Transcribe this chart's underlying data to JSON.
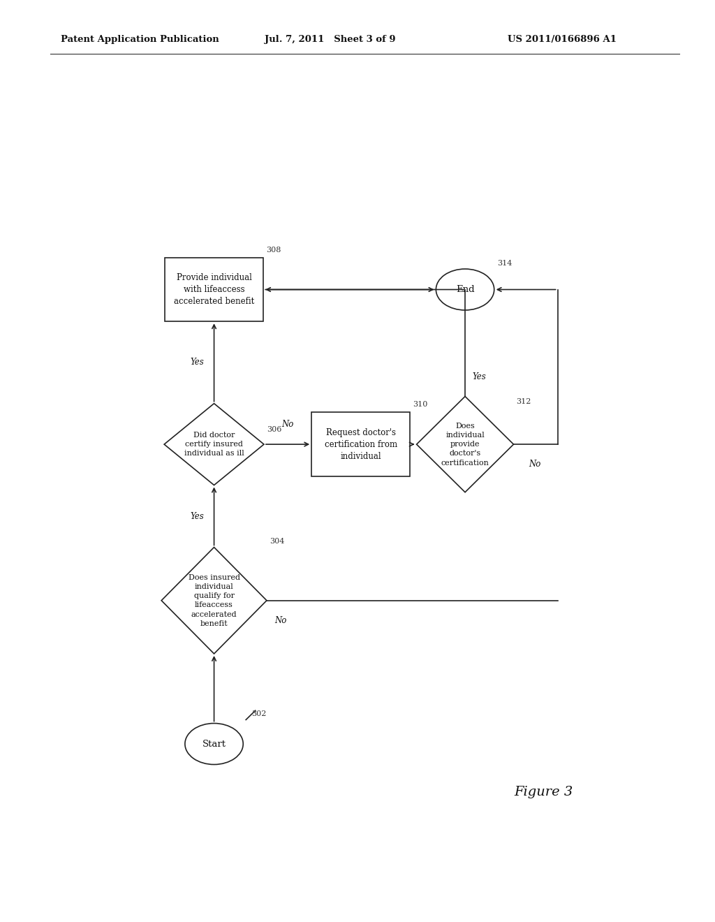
{
  "header_left": "Patent Application Publication",
  "header_mid": "Jul. 7, 2011   Sheet 3 of 9",
  "header_right": "US 2011/0166896 A1",
  "figure_label": "Figure 3",
  "background": "#ffffff",
  "line_color": "#222222",
  "text_color": "#111111",
  "font_size": 8.5,
  "start_label": "Start",
  "end_label": "End",
  "ref_302": "302",
  "ref_304": "304",
  "ref_306": "306",
  "ref_308": "308",
  "ref_310": "310",
  "ref_312": "312",
  "ref_314": "314",
  "label_308": "Provide individual\nwith lifeaccess\naccelerated benefit",
  "label_310": "Request doctor's\ncertification from\nindividual",
  "label_304": "Does insured\nindividual\nqualify for\nlifeaccess\naccelerated\nbenefit",
  "label_306": "Did doctor\ncertify insured\nindividual as ill",
  "label_312": "Does\nindividual\nprovide\ndoctor's\ncertification"
}
